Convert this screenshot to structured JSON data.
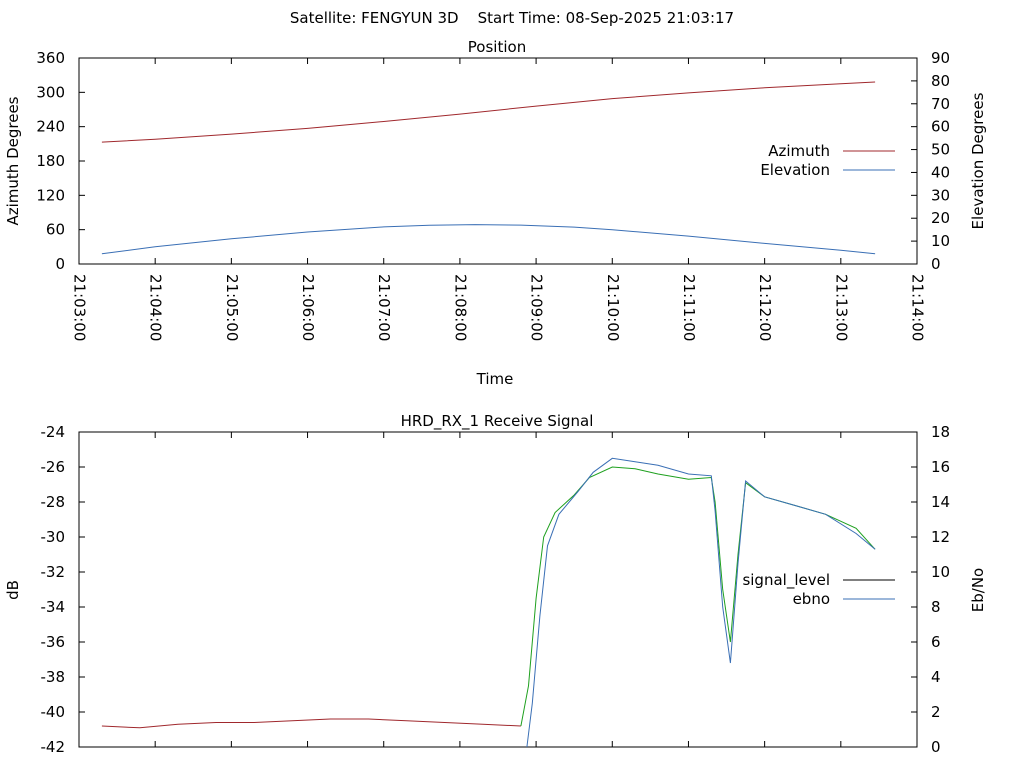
{
  "header": {
    "text": "Satellite: FENGYUN 3D    Start Time: 08-Sep-2025 21:03:17"
  },
  "chart_data": [
    {
      "type": "line",
      "title": "Position",
      "xlabel": "Time",
      "ylabel": "Azimuth Degrees",
      "y2label": "Elevation Degrees",
      "x_ticks": [
        "21:03:00",
        "21:04:00",
        "21:05:00",
        "21:06:00",
        "21:07:00",
        "21:08:00",
        "21:09:00",
        "21:10:00",
        "21:11:00",
        "21:12:00",
        "21:13:00",
        "21:14:00"
      ],
      "xlim_min": [
        3,
        14
      ],
      "ylim": [
        0,
        360
      ],
      "y_ticks": [
        0,
        60,
        120,
        180,
        240,
        300,
        360
      ],
      "y2lim": [
        0,
        90
      ],
      "y2_ticks": [
        0,
        10,
        20,
        30,
        40,
        50,
        60,
        70,
        80,
        90
      ],
      "legend_position": "right",
      "series": [
        {
          "name": "Azimuth",
          "axis": "y",
          "color": "#a0282d",
          "x": [
            3.3,
            4.0,
            5.0,
            6.0,
            7.0,
            8.0,
            9.0,
            10.0,
            11.0,
            12.0,
            13.0,
            13.45
          ],
          "values": [
            213,
            218,
            227,
            237,
            249,
            262,
            276,
            289,
            299,
            308,
            315,
            318
          ]
        },
        {
          "name": "Elevation",
          "axis": "y2",
          "color": "#3a6fb5",
          "x": [
            3.3,
            4.0,
            5.0,
            6.0,
            7.0,
            7.6,
            8.2,
            8.8,
            9.5,
            10.0,
            11.0,
            12.0,
            13.0,
            13.45
          ],
          "values": [
            4.5,
            7.5,
            11,
            14,
            16.2,
            16.9,
            17.2,
            17.0,
            16.1,
            15.0,
            12.2,
            9.0,
            6.0,
            4.5
          ]
        }
      ]
    },
    {
      "type": "line",
      "title": "HRD_RX_1 Receive Signal",
      "ylabel": "dB",
      "y2label": "Eb/No",
      "xlim_min": [
        3,
        14
      ],
      "ylim": [
        -42,
        -24
      ],
      "y_ticks": [
        -42,
        -40,
        -38,
        -36,
        -34,
        -32,
        -30,
        -28,
        -26,
        -24
      ],
      "y2lim": [
        0,
        18
      ],
      "y2_ticks": [
        0,
        2,
        4,
        6,
        8,
        10,
        12,
        14,
        16,
        18
      ],
      "legend_position": "right",
      "legend": [
        {
          "name": "signal_level",
          "color": "#000000"
        },
        {
          "name": "ebno",
          "color": "#3a6fb5"
        }
      ],
      "series": [
        {
          "name": "signal_level (low)",
          "axis": "y",
          "color": "#a0282d",
          "x": [
            3.3,
            3.8,
            4.3,
            4.8,
            5.3,
            5.8,
            6.3,
            6.8,
            7.3,
            7.8,
            8.3,
            8.8
          ],
          "values": [
            -40.8,
            -40.9,
            -40.7,
            -40.6,
            -40.6,
            -40.5,
            -40.4,
            -40.4,
            -40.5,
            -40.6,
            -40.7,
            -40.8
          ]
        },
        {
          "name": "signal_level (rx)",
          "axis": "y",
          "color": "#1ea01e",
          "x": [
            8.8,
            8.9,
            9.0,
            9.1,
            9.25,
            9.5,
            9.7,
            10.0,
            10.3,
            10.6,
            11.0,
            11.3,
            11.35,
            11.45,
            11.55,
            11.65,
            11.75,
            12.0,
            12.4,
            12.8,
            13.2,
            13.45
          ],
          "values": [
            -40.8,
            -38.5,
            -33.5,
            -30.0,
            -28.6,
            -27.6,
            -26.6,
            -26.0,
            -26.1,
            -26.4,
            -26.7,
            -26.6,
            -28.0,
            -33.0,
            -36.0,
            -31.0,
            -26.9,
            -27.7,
            -28.2,
            -28.7,
            -29.5,
            -30.7
          ]
        },
        {
          "name": "ebno",
          "axis": "y2",
          "color": "#3a6fb5",
          "x": [
            8.88,
            8.95,
            9.05,
            9.15,
            9.3,
            9.55,
            9.75,
            10.0,
            10.3,
            10.6,
            11.0,
            11.3,
            11.35,
            11.45,
            11.55,
            11.65,
            11.75,
            12.0,
            12.4,
            12.8,
            13.2,
            13.45
          ],
          "values": [
            0.0,
            2.5,
            7.5,
            11.5,
            13.3,
            14.6,
            15.7,
            16.5,
            16.3,
            16.1,
            15.6,
            15.5,
            13.5,
            8.0,
            4.8,
            10.5,
            15.2,
            14.3,
            13.8,
            13.3,
            12.2,
            11.3
          ]
        }
      ]
    }
  ]
}
